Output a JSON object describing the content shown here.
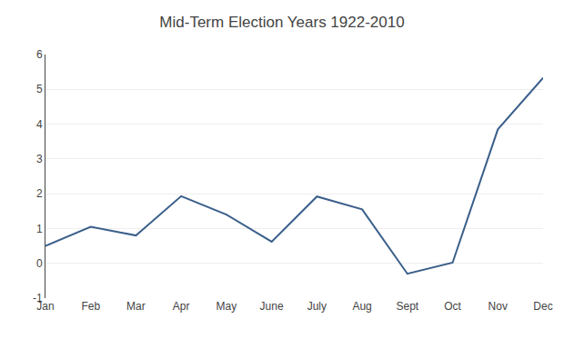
{
  "chart_data": {
    "type": "line",
    "title": "Mid-Term Election Years 1922-2010",
    "categories": [
      "Jan",
      "Feb",
      "Mar",
      "Apr",
      "May",
      "June",
      "July",
      "Aug",
      "Sept",
      "Oct",
      "Nov",
      "Dec"
    ],
    "values": [
      0.5,
      1.05,
      0.8,
      1.93,
      1.4,
      0.62,
      1.92,
      1.55,
      -0.3,
      0.02,
      3.85,
      5.33
    ],
    "color": "#3a5f8a",
    "ylim": [
      -1,
      6
    ],
    "yticks": [
      -1,
      0,
      1,
      2,
      3,
      4,
      5,
      6
    ],
    "grid": true
  }
}
